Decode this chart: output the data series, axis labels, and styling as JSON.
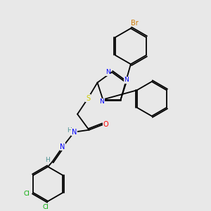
{
  "background_color": "#e8e8e8",
  "figsize": [
    3.0,
    3.0
  ],
  "dpi": 100,
  "colors": {
    "C": "#000000",
    "N": "#0000ff",
    "O": "#ff0000",
    "S": "#cccc00",
    "Br": "#cc7700",
    "Cl": "#00aa00",
    "H": "#4a9090",
    "bond": "#000000"
  },
  "font_size": 6.5,
  "bond_lw": 1.3
}
